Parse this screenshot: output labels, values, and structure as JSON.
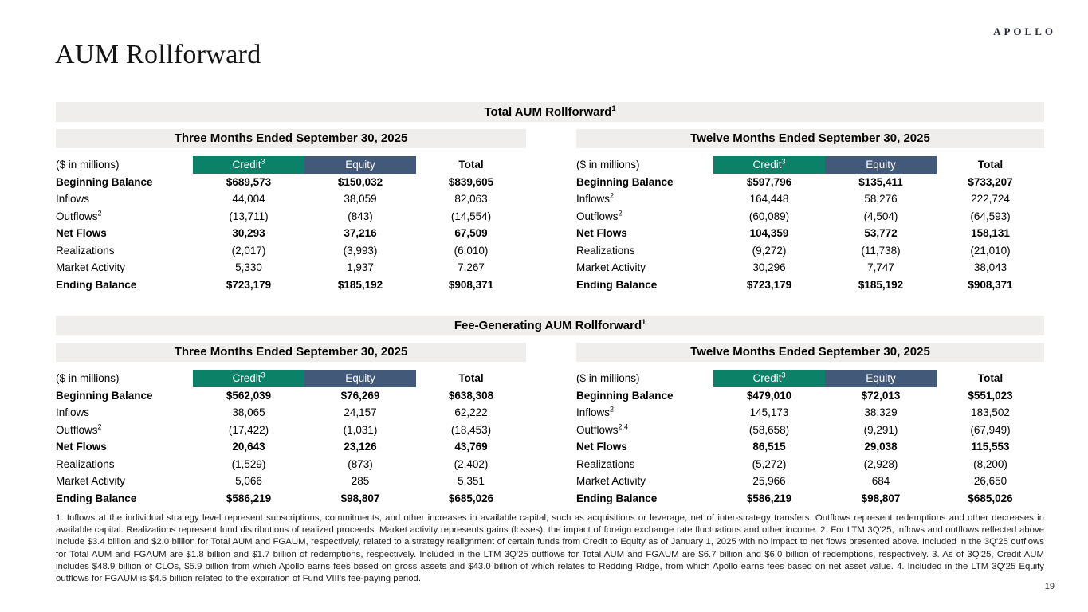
{
  "page": {
    "title": "AUM Rollforward",
    "logo": "APOLLO",
    "page_number": "19"
  },
  "colors": {
    "credit_header": "#0B8268",
    "equity_header": "#42597A",
    "band_gray": "#EFEEEC"
  },
  "sections": [
    {
      "title": "Total AUM Rollforward",
      "title_sup": "1",
      "tables": [
        {
          "period": "Three Months Ended September 30, 2025",
          "unit_label": "($ in millions)",
          "columns": {
            "credit": "Credit",
            "credit_sup": "3",
            "equity": "Equity",
            "total": "Total"
          },
          "rows": [
            {
              "label": "Beginning Balance",
              "label_sup": "",
              "bold": true,
              "credit": "$689,573",
              "equity": "$150,032",
              "total": "$839,605"
            },
            {
              "label": "Inflows",
              "label_sup": "",
              "bold": false,
              "credit": "44,004",
              "equity": "38,059",
              "total": "82,063"
            },
            {
              "label": "Outflows",
              "label_sup": "2",
              "bold": false,
              "credit": "(13,711)",
              "equity": "(843)",
              "total": "(14,554)"
            },
            {
              "label": "Net Flows",
              "label_sup": "",
              "bold": true,
              "credit": "30,293",
              "equity": "37,216",
              "total": "67,509"
            },
            {
              "label": "Realizations",
              "label_sup": "",
              "bold": false,
              "credit": "(2,017)",
              "equity": "(3,993)",
              "total": "(6,010)"
            },
            {
              "label": "Market Activity",
              "label_sup": "",
              "bold": false,
              "credit": "5,330",
              "equity": "1,937",
              "total": "7,267"
            },
            {
              "label": "Ending Balance",
              "label_sup": "",
              "bold": true,
              "credit": "$723,179",
              "equity": "$185,192",
              "total": "$908,371"
            }
          ]
        },
        {
          "period": "Twelve Months Ended September 30, 2025",
          "unit_label": "($ in millions)",
          "columns": {
            "credit": "Credit",
            "credit_sup": "3",
            "equity": "Equity",
            "total": "Total"
          },
          "rows": [
            {
              "label": "Beginning Balance",
              "label_sup": "",
              "bold": true,
              "credit": "$597,796",
              "equity": "$135,411",
              "total": "$733,207"
            },
            {
              "label": "Inflows",
              "label_sup": "2",
              "bold": false,
              "credit": "164,448",
              "equity": "58,276",
              "total": "222,724"
            },
            {
              "label": "Outflows",
              "label_sup": "2",
              "bold": false,
              "credit": "(60,089)",
              "equity": "(4,504)",
              "total": "(64,593)"
            },
            {
              "label": "Net Flows",
              "label_sup": "",
              "bold": true,
              "credit": "104,359",
              "equity": "53,772",
              "total": "158,131"
            },
            {
              "label": "Realizations",
              "label_sup": "",
              "bold": false,
              "credit": "(9,272)",
              "equity": "(11,738)",
              "total": "(21,010)"
            },
            {
              "label": "Market Activity",
              "label_sup": "",
              "bold": false,
              "credit": "30,296",
              "equity": "7,747",
              "total": "38,043"
            },
            {
              "label": "Ending Balance",
              "label_sup": "",
              "bold": true,
              "credit": "$723,179",
              "equity": "$185,192",
              "total": "$908,371"
            }
          ]
        }
      ]
    },
    {
      "title": "Fee-Generating AUM Rollforward",
      "title_sup": "1",
      "tables": [
        {
          "period": "Three Months Ended September 30, 2025",
          "unit_label": "($ in millions)",
          "columns": {
            "credit": "Credit",
            "credit_sup": "3",
            "equity": "Equity",
            "total": "Total"
          },
          "rows": [
            {
              "label": "Beginning Balance",
              "label_sup": "",
              "bold": true,
              "credit": "$562,039",
              "equity": "$76,269",
              "total": "$638,308"
            },
            {
              "label": "Inflows",
              "label_sup": "",
              "bold": false,
              "credit": "38,065",
              "equity": "24,157",
              "total": "62,222"
            },
            {
              "label": "Outflows",
              "label_sup": "2",
              "bold": false,
              "credit": "(17,422)",
              "equity": "(1,031)",
              "total": "(18,453)"
            },
            {
              "label": "Net Flows",
              "label_sup": "",
              "bold": true,
              "credit": "20,643",
              "equity": "23,126",
              "total": "43,769"
            },
            {
              "label": "Realizations",
              "label_sup": "",
              "bold": false,
              "credit": "(1,529)",
              "equity": "(873)",
              "total": "(2,402)"
            },
            {
              "label": "Market Activity",
              "label_sup": "",
              "bold": false,
              "credit": "5,066",
              "equity": "285",
              "total": "5,351"
            },
            {
              "label": "Ending Balance",
              "label_sup": "",
              "bold": true,
              "credit": "$586,219",
              "equity": "$98,807",
              "total": "$685,026"
            }
          ]
        },
        {
          "period": "Twelve Months Ended September 30, 2025",
          "unit_label": "($ in millions)",
          "columns": {
            "credit": "Credit",
            "credit_sup": "3",
            "equity": "Equity",
            "total": "Total"
          },
          "rows": [
            {
              "label": "Beginning Balance",
              "label_sup": "",
              "bold": true,
              "credit": "$479,010",
              "equity": "$72,013",
              "total": "$551,023"
            },
            {
              "label": "Inflows",
              "label_sup": "2",
              "bold": false,
              "credit": "145,173",
              "equity": "38,329",
              "total": "183,502"
            },
            {
              "label": "Outflows",
              "label_sup": "2,4",
              "bold": false,
              "credit": "(58,658)",
              "equity": "(9,291)",
              "total": "(67,949)"
            },
            {
              "label": "Net Flows",
              "label_sup": "",
              "bold": true,
              "credit": "86,515",
              "equity": "29,038",
              "total": "115,553"
            },
            {
              "label": "Realizations",
              "label_sup": "",
              "bold": false,
              "credit": "(5,272)",
              "equity": "(2,928)",
              "total": "(8,200)"
            },
            {
              "label": "Market Activity",
              "label_sup": "",
              "bold": false,
              "credit": "25,966",
              "equity": "684",
              "total": "26,650"
            },
            {
              "label": "Ending Balance",
              "label_sup": "",
              "bold": true,
              "credit": "$586,219",
              "equity": "$98,807",
              "total": "$685,026"
            }
          ]
        }
      ]
    }
  ],
  "footnotes": "1. Inflows at the individual strategy level represent subscriptions, commitments, and other increases in available capital, such as acquisitions or leverage, net of inter-strategy transfers. Outflows represent redemptions and other decreases in available capital. Realizations represent fund distributions of realized proceeds. Market activity represents gains (losses), the impact of foreign exchange rate fluctuations and other income. 2. For LTM 3Q'25, inflows and outflows reflected above include $3.4 billion and $2.0 billion for Total AUM and FGAUM, respectively, related to a strategy realignment of certain funds from Credit to Equity as of January 1, 2025 with no impact to net flows presented above. Included in the 3Q'25 outflows for Total AUM and FGAUM are $1.8 billion and $1.7 billion of redemptions, respectively. Included in the LTM 3Q'25 outflows for Total AUM and FGAUM are $6.7 billion and $6.0 billion of redemptions, respectively. 3. As of 3Q'25, Credit AUM includes $48.9 billion of CLOs, $5.9 billion from which Apollo earns fees based on gross assets and $43.0 billion of which relates to Redding Ridge, from which Apollo earns fees based on net asset value. 4. Included in the LTM 3Q'25 Equity outflows for FGAUM is $4.5 billion related to the expiration of Fund VIII's fee-paying period."
}
